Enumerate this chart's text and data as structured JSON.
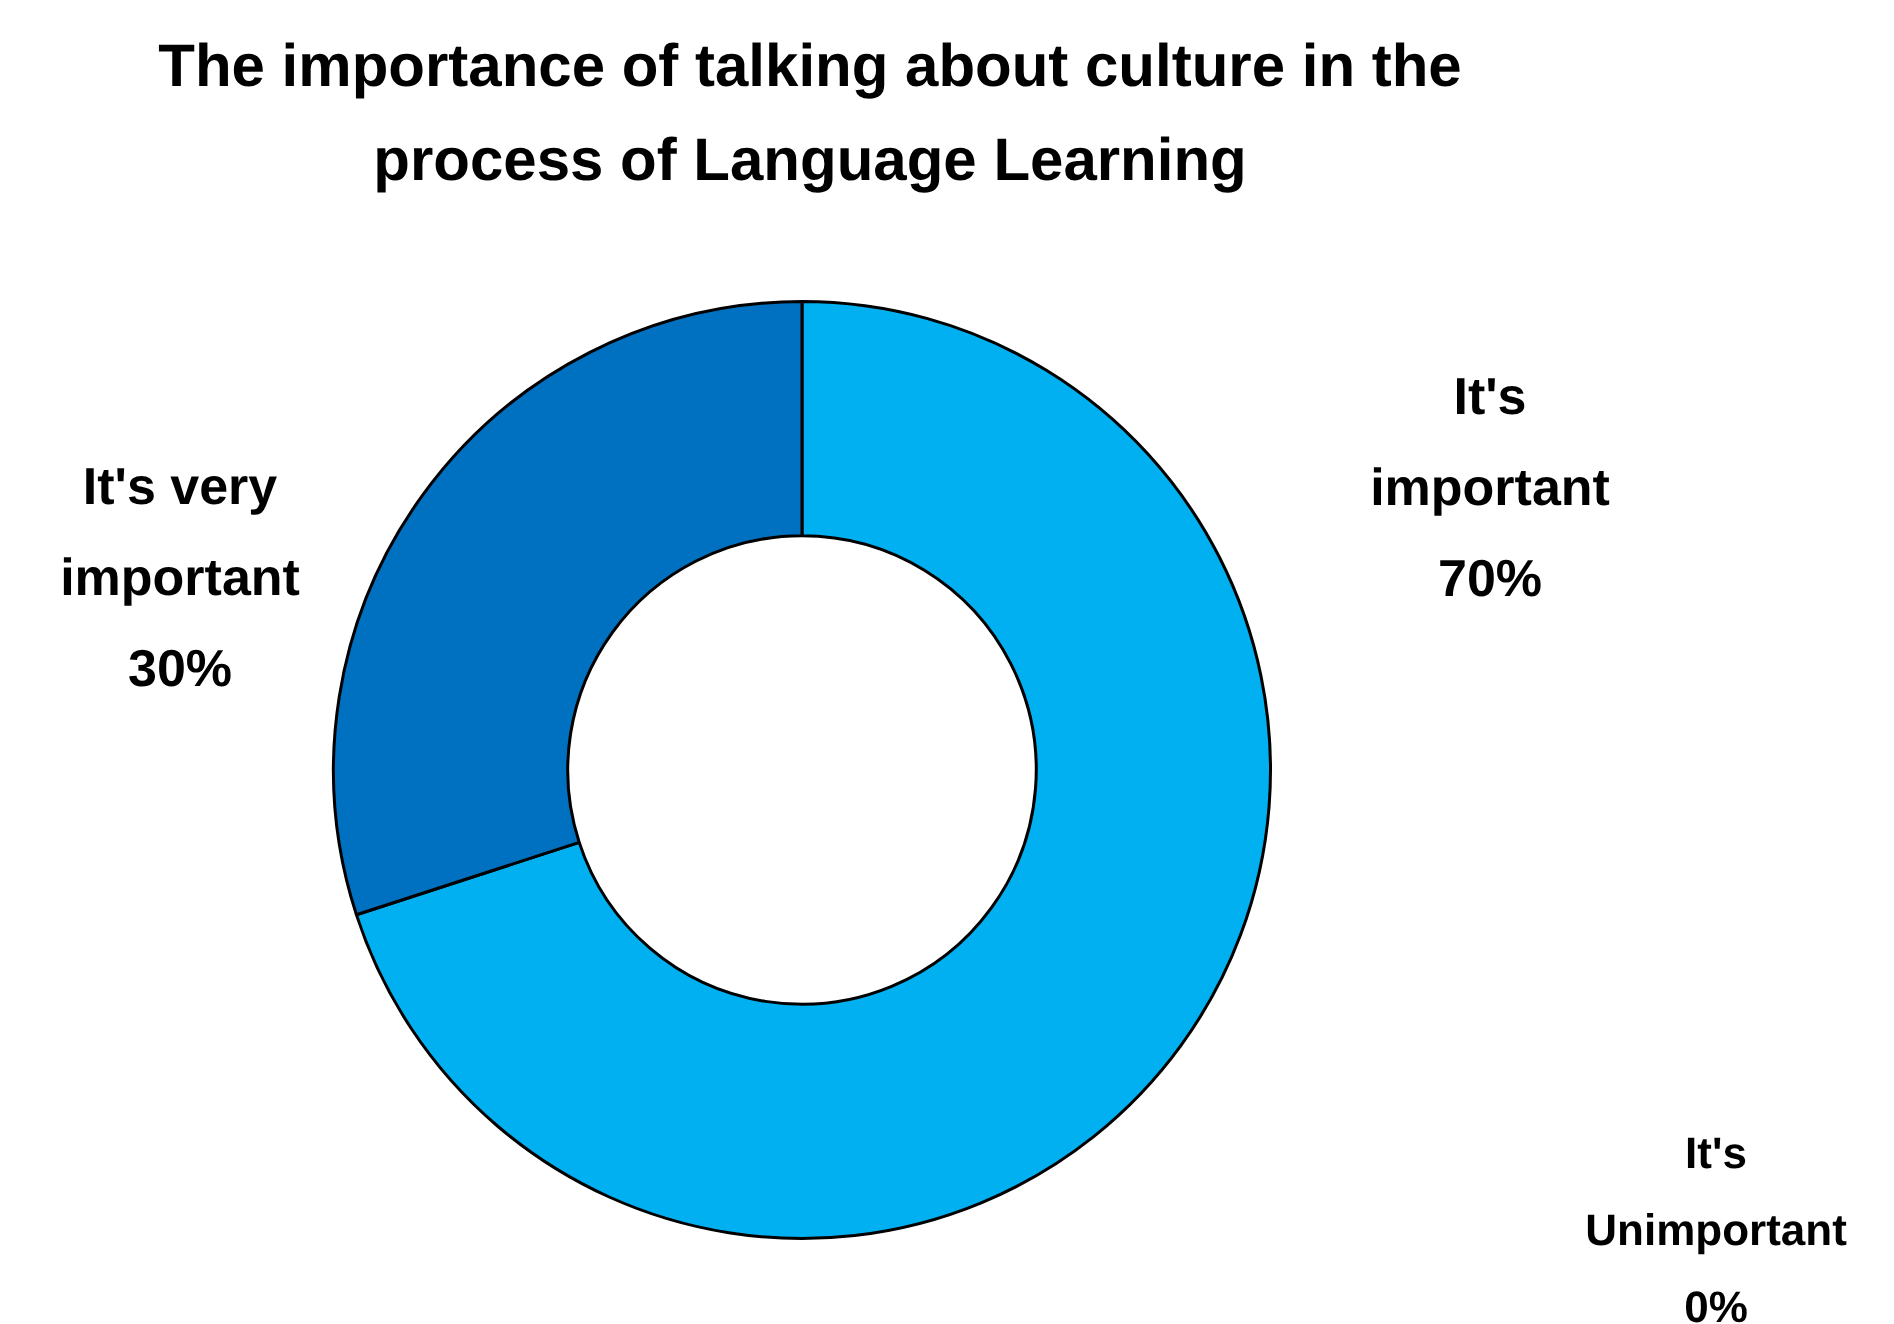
{
  "chart_data": {
    "type": "donut",
    "title": "The importance of talking about culture in the process of Language Learning",
    "categories": [
      "It's important",
      "It's Unimportant",
      "It's very important"
    ],
    "values": [
      70,
      0,
      30
    ],
    "colors": [
      "#00b0f0",
      "#a5a5a5",
      "#0070c0"
    ],
    "value_labels": [
      "70%",
      "0%",
      "30%"
    ],
    "legend": false
  }
}
